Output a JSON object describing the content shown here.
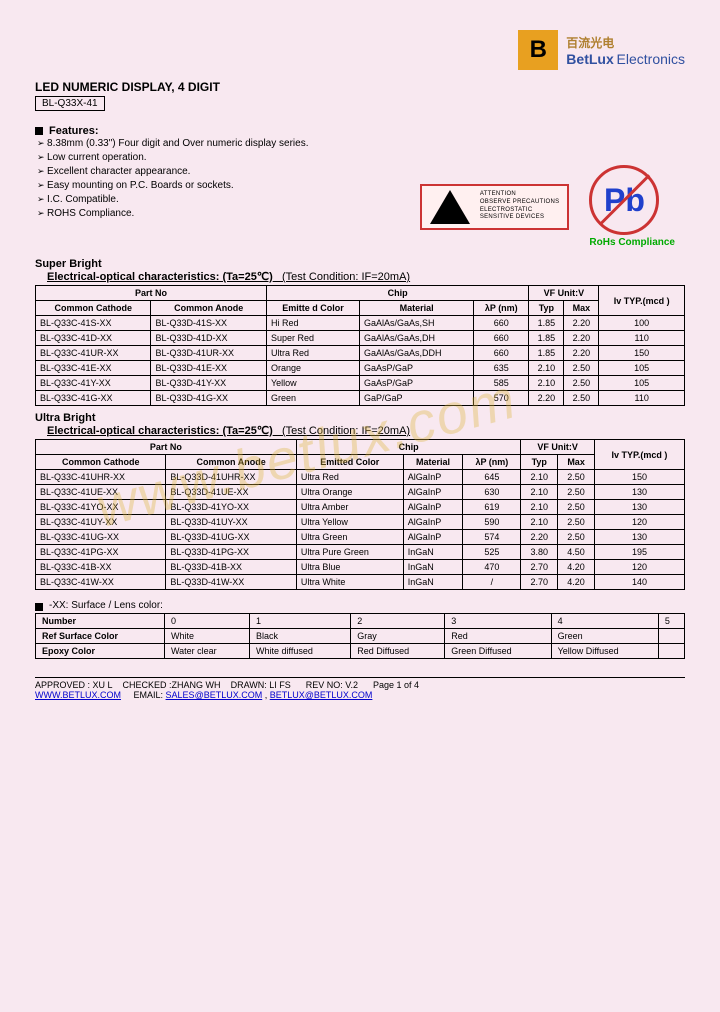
{
  "logo": {
    "letter": "B",
    "chinese": "百流光电",
    "english_bold": "BetLux",
    "english_light": "Electronics",
    "logo_bg": "#e8a020",
    "cn_color": "#b08030",
    "en_color": "#3050a0"
  },
  "title": "LED NUMERIC DISPLAY, 4 DIGIT",
  "part_number": "BL-Q33X-41",
  "features_heading": "Features:",
  "features": [
    "8.38mm (0.33\") Four digit and Over numeric display series.",
    "Low current operation.",
    "Excellent character appearance.",
    "Easy mounting on P.C. Boards or sockets.",
    "I.C. Compatible.",
    "ROHS Compliance."
  ],
  "esd": {
    "line1": "ATTENTION",
    "line2": "OBSERVE PRECAUTIONS",
    "line3": "ELECTROSTATIC",
    "line4": "SENSITIVE DEVICES"
  },
  "pb_label": "Pb",
  "rohs_label": "RoHs Compliance",
  "watermark": "www.betlux.com",
  "super_bright": {
    "heading": "Super Bright",
    "subtitle_bold": "Electrical-optical characteristics: (Ta=25℃)",
    "subtitle_rest": "(Test Condition: IF=20mA)",
    "headers": {
      "part_no": "Part No",
      "common_cathode": "Common Cathode",
      "common_anode": "Common Anode",
      "chip": "Chip",
      "emitted_color": "Emitte d Color",
      "material": "Material",
      "lambda": "λP (nm)",
      "vf": "VF Unit:V",
      "typ": "Typ",
      "max": "Max",
      "iv": "Iv TYP.(mcd )"
    },
    "rows": [
      {
        "cc": "BL-Q33C-41S-XX",
        "ca": "BL-Q33D-41S-XX",
        "color": "Hi Red",
        "mat": "GaAlAs/GaAs,SH",
        "lp": "660",
        "typ": "1.85",
        "max": "2.20",
        "iv": "100"
      },
      {
        "cc": "BL-Q33C-41D-XX",
        "ca": "BL-Q33D-41D-XX",
        "color": "Super Red",
        "mat": "GaAlAs/GaAs,DH",
        "lp": "660",
        "typ": "1.85",
        "max": "2.20",
        "iv": "110"
      },
      {
        "cc": "BL-Q33C-41UR-XX",
        "ca": "BL-Q33D-41UR-XX",
        "color": "Ultra Red",
        "mat": "GaAlAs/GaAs,DDH",
        "lp": "660",
        "typ": "1.85",
        "max": "2.20",
        "iv": "150"
      },
      {
        "cc": "BL-Q33C-41E-XX",
        "ca": "BL-Q33D-41E-XX",
        "color": "Orange",
        "mat": "GaAsP/GaP",
        "lp": "635",
        "typ": "2.10",
        "max": "2.50",
        "iv": "105"
      },
      {
        "cc": "BL-Q33C-41Y-XX",
        "ca": "BL-Q33D-41Y-XX",
        "color": "Yellow",
        "mat": "GaAsP/GaP",
        "lp": "585",
        "typ": "2.10",
        "max": "2.50",
        "iv": "105"
      },
      {
        "cc": "BL-Q33C-41G-XX",
        "ca": "BL-Q33D-41G-XX",
        "color": "Green",
        "mat": "GaP/GaP",
        "lp": "570",
        "typ": "2.20",
        "max": "2.50",
        "iv": "110"
      }
    ]
  },
  "ultra_bright": {
    "heading": "Ultra Bright",
    "subtitle_bold": "Electrical-optical characteristics: (Ta=25℃)",
    "subtitle_rest": "(Test Condition: IF=20mA)",
    "headers": {
      "emitted_color": "Emitted Color"
    },
    "rows": [
      {
        "cc": "BL-Q33C-41UHR-XX",
        "ca": "BL-Q33D-41UHR-XX",
        "color": "Ultra Red",
        "mat": "AlGaInP",
        "lp": "645",
        "typ": "2.10",
        "max": "2.50",
        "iv": "150"
      },
      {
        "cc": "BL-Q33C-41UE-XX",
        "ca": "BL-Q33D-41UE-XX",
        "color": "Ultra Orange",
        "mat": "AlGaInP",
        "lp": "630",
        "typ": "2.10",
        "max": "2.50",
        "iv": "130"
      },
      {
        "cc": "BL-Q33C-41YO-XX",
        "ca": "BL-Q33D-41YO-XX",
        "color": "Ultra Amber",
        "mat": "AlGaInP",
        "lp": "619",
        "typ": "2.10",
        "max": "2.50",
        "iv": "130"
      },
      {
        "cc": "BL-Q33C-41UY-XX",
        "ca": "BL-Q33D-41UY-XX",
        "color": "Ultra Yellow",
        "mat": "AlGaInP",
        "lp": "590",
        "typ": "2.10",
        "max": "2.50",
        "iv": "120"
      },
      {
        "cc": "BL-Q33C-41UG-XX",
        "ca": "BL-Q33D-41UG-XX",
        "color": "Ultra Green",
        "mat": "AlGaInP",
        "lp": "574",
        "typ": "2.20",
        "max": "2.50",
        "iv": "130"
      },
      {
        "cc": "BL-Q33C-41PG-XX",
        "ca": "BL-Q33D-41PG-XX",
        "color": "Ultra Pure Green",
        "mat": "InGaN",
        "lp": "525",
        "typ": "3.80",
        "max": "4.50",
        "iv": "195"
      },
      {
        "cc": "BL-Q33C-41B-XX",
        "ca": "BL-Q33D-41B-XX",
        "color": "Ultra Blue",
        "mat": "InGaN",
        "lp": "470",
        "typ": "2.70",
        "max": "4.20",
        "iv": "120"
      },
      {
        "cc": "BL-Q33C-41W-XX",
        "ca": "BL-Q33D-41W-XX",
        "color": "Ultra White",
        "mat": "InGaN",
        "lp": "/",
        "typ": "2.70",
        "max": "4.20",
        "iv": "140"
      }
    ]
  },
  "lens": {
    "heading": "-XX: Surface / Lens color:",
    "headers": {
      "number": "Number",
      "ref": "Ref Surface Color",
      "epoxy": "Epoxy Color"
    },
    "cols": [
      "0",
      "1",
      "2",
      "3",
      "4",
      "5"
    ],
    "ref_row": [
      "White",
      "Black",
      "Gray",
      "Red",
      "Green",
      ""
    ],
    "epoxy_row": [
      "Water clear",
      "White diffused",
      "Red Diffused",
      "Green Diffused",
      "Yellow Diffused",
      ""
    ]
  },
  "footer": {
    "approved": "APPROVED : XU L",
    "checked": "CHECKED :ZHANG WH",
    "drawn": "DRAWN: LI FS",
    "rev": "REV NO: V.2",
    "page": "Page 1 of 4",
    "www": "WWW.BETLUX.COM",
    "email_label": "EMAIL:",
    "email1": "SALES@BETLUX.COM",
    "email2": "BETLUX@BETLUX.COM"
  },
  "colors": {
    "background": "#f8e8f0",
    "border": "#000000",
    "link": "#0000cc",
    "esd_border": "#cc3333",
    "rohs_green": "#00aa00"
  }
}
